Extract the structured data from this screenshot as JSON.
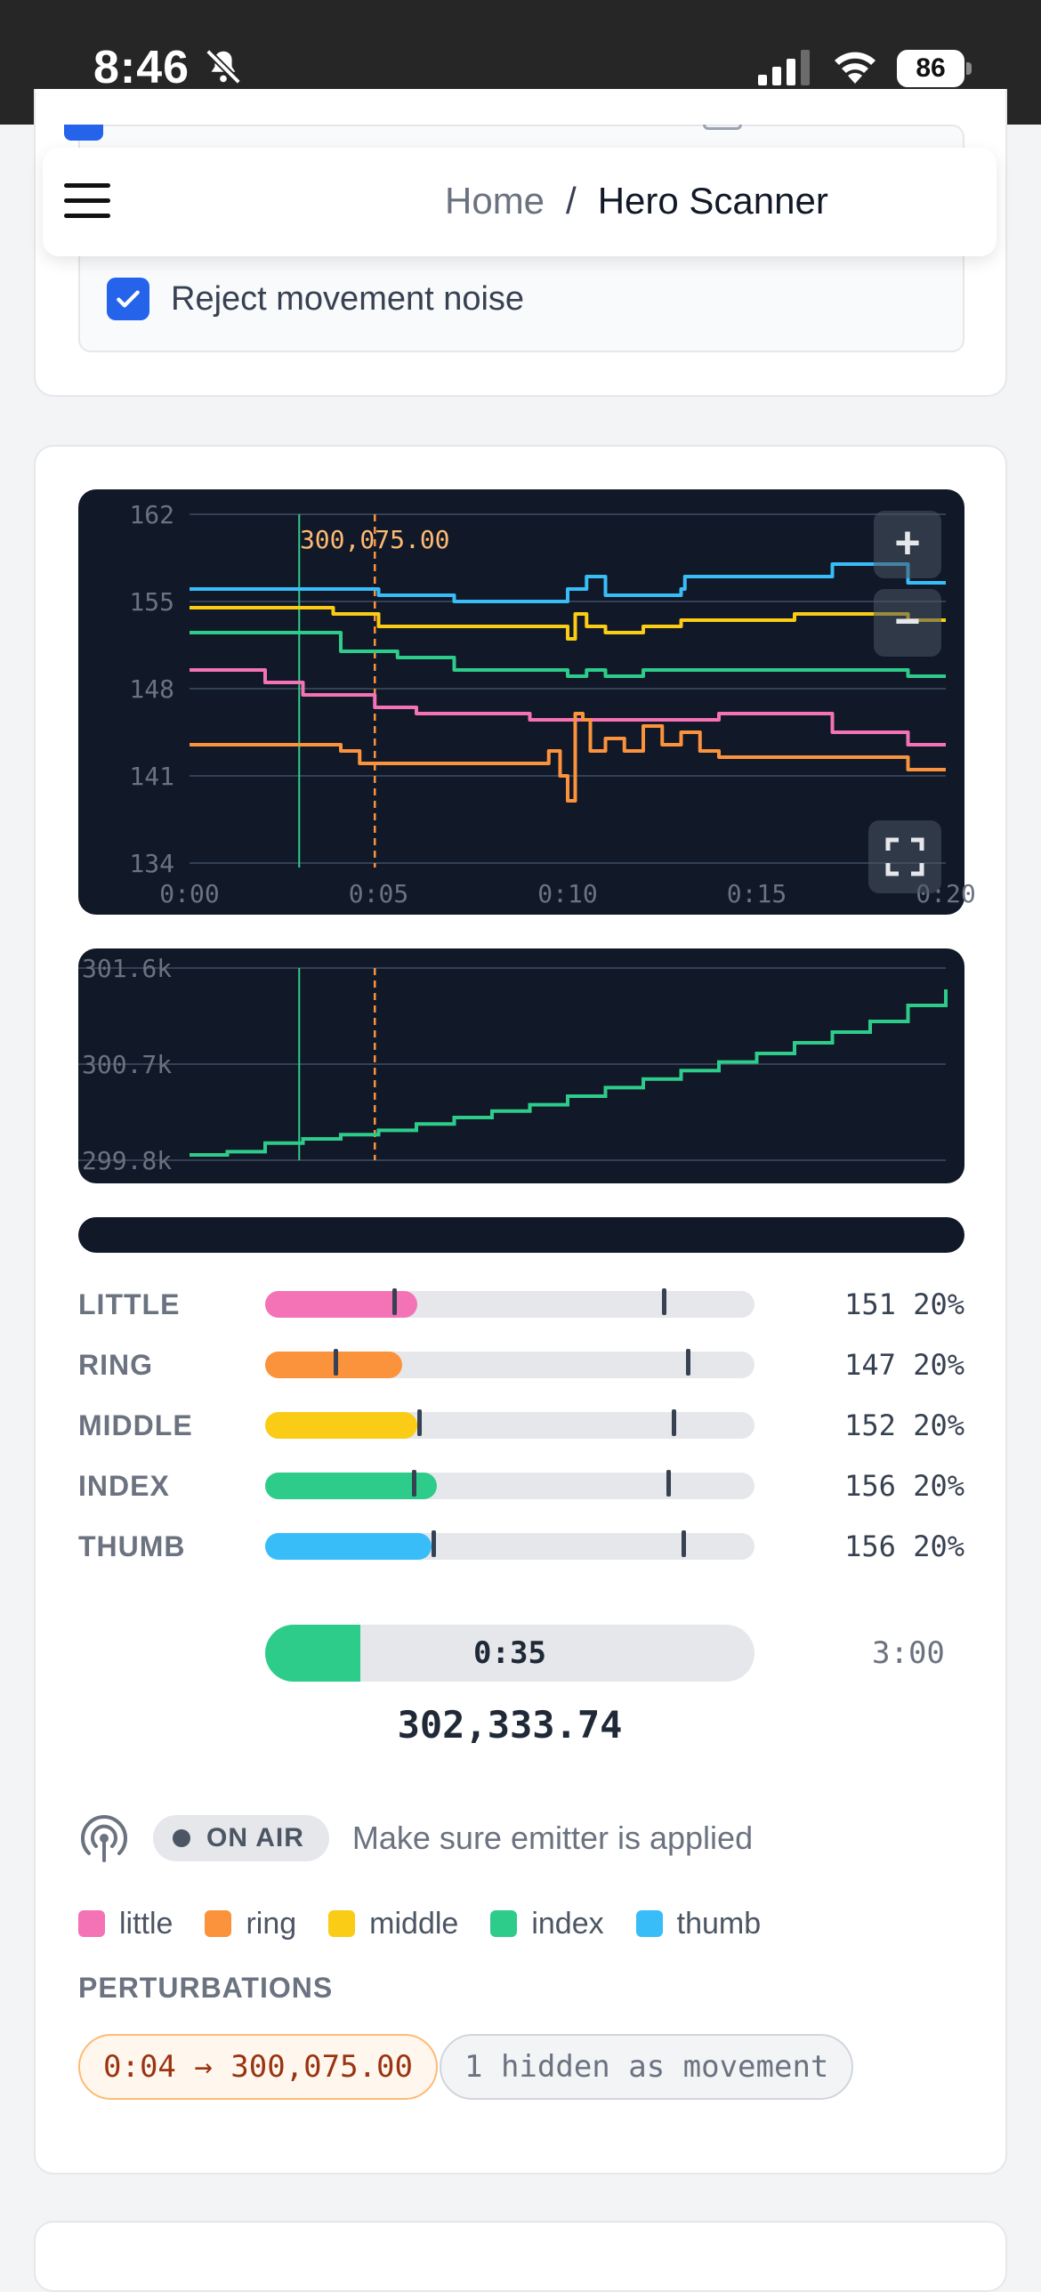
{
  "status_bar": {
    "time": "8:46",
    "battery": "86"
  },
  "header": {
    "breadcrumb_home": "Home",
    "breadcrumb_sep": "/",
    "breadcrumb_current": "Hero Scanner"
  },
  "settings": {
    "reject_noise_label": "Reject movement noise",
    "reject_noise_checked": true
  },
  "chart_data": [
    {
      "type": "line",
      "xlabel": "",
      "ylabel": "",
      "x_ticks": [
        "0:00",
        "0:05",
        "0:10",
        "0:15",
        "0:20"
      ],
      "y_ticks": [
        162,
        155,
        148,
        141,
        134
      ],
      "ylim": [
        134,
        162
      ],
      "xlim_seconds": [
        0,
        20
      ],
      "annotation": {
        "label": "300,075.00",
        "x_seconds": 4.9
      },
      "cursor_x_seconds": 2.9,
      "series": [
        {
          "name": "thumb",
          "color": "#38bdf8",
          "x": [
            0,
            3,
            5,
            7,
            9,
            10,
            10.5,
            11,
            12,
            13,
            13.1,
            15,
            16,
            17,
            18,
            19,
            20
          ],
          "y": [
            156,
            156,
            155.5,
            155,
            155,
            156,
            157,
            155.5,
            155.5,
            156,
            157,
            157,
            157,
            158,
            158,
            156.5,
            156.5
          ]
        },
        {
          "name": "middle",
          "color": "#facc15",
          "x": [
            0,
            3,
            3.8,
            5,
            7,
            9,
            10,
            10.2,
            10.5,
            11,
            12,
            13,
            15,
            16,
            17,
            18,
            19,
            20
          ],
          "y": [
            154.5,
            154.5,
            154,
            153,
            153,
            153,
            152,
            154,
            153,
            152.5,
            153,
            153.5,
            153.5,
            154,
            154,
            154,
            153.5,
            153.5
          ]
        },
        {
          "name": "index",
          "color": "#2ecc8a",
          "x": [
            0,
            2,
            4,
            5.5,
            7,
            9,
            10,
            10.5,
            11,
            12,
            13,
            15,
            17,
            19,
            20
          ],
          "y": [
            152.5,
            152.5,
            151,
            150.5,
            149.5,
            149.5,
            149,
            149.5,
            149,
            149.5,
            149.5,
            149.5,
            149.5,
            149,
            149
          ]
        },
        {
          "name": "little",
          "color": "#f472b6",
          "x": [
            0,
            1,
            2,
            3,
            4,
            4.9,
            6,
            7,
            8,
            9,
            10,
            11,
            12,
            13,
            14,
            15,
            16,
            17,
            18,
            19,
            20
          ],
          "y": [
            149.5,
            149.5,
            148.5,
            147.5,
            147.5,
            146.5,
            146,
            146,
            146,
            145.5,
            145.5,
            145.5,
            145.5,
            145.5,
            146,
            146,
            146,
            144.5,
            144.5,
            143.5,
            143.5
          ]
        },
        {
          "name": "ring",
          "color": "#fb923c",
          "x": [
            0,
            1,
            2,
            3,
            4,
            4.5,
            5,
            7,
            9,
            9.5,
            9.8,
            10,
            10.2,
            10.4,
            10.6,
            11,
            11.5,
            12,
            12.5,
            13,
            13.5,
            14,
            15,
            16,
            17,
            18,
            19,
            20
          ],
          "y": [
            143.5,
            143.5,
            143.5,
            143.5,
            143,
            142,
            142,
            142,
            142,
            143,
            141,
            139,
            146,
            145.5,
            143,
            144,
            143,
            145,
            143.5,
            144.5,
            143,
            142.5,
            142.5,
            142.5,
            142.5,
            142.5,
            141.5,
            141.5
          ]
        }
      ]
    },
    {
      "type": "line",
      "y_ticks": [
        "301.6k",
        "300.7k",
        "299.8k"
      ],
      "ylim": [
        299800,
        301600
      ],
      "xlim_seconds": [
        0,
        20
      ],
      "series": [
        {
          "name": "",
          "color": "#2ecc8a",
          "x": [
            0,
            1,
            2,
            3,
            4,
            5,
            6,
            7,
            8,
            9,
            10,
            11,
            12,
            13,
            14,
            15,
            16,
            17,
            18,
            19,
            20
          ],
          "y": [
            299850,
            299880,
            299960,
            300000,
            300040,
            300080,
            300140,
            300200,
            300260,
            300320,
            300400,
            300480,
            300560,
            300640,
            300720,
            300800,
            300900,
            301000,
            301100,
            301250,
            301400
          ]
        }
      ]
    }
  ],
  "fingers": [
    {
      "name": "LITTLE",
      "color": "#f472b6",
      "fill_pct": 0.31,
      "tick1": 0.26,
      "tick2": 0.81,
      "value": "151",
      "pct": "20%"
    },
    {
      "name": "RING",
      "color": "#fb923c",
      "fill_pct": 0.28,
      "tick1": 0.14,
      "tick2": 0.86,
      "value": "147",
      "pct": "20%"
    },
    {
      "name": "MIDDLE",
      "color": "#facc15",
      "fill_pct": 0.31,
      "tick1": 0.31,
      "tick2": 0.83,
      "value": "152",
      "pct": "20%"
    },
    {
      "name": "INDEX",
      "color": "#2ecc8a",
      "fill_pct": 0.35,
      "tick1": 0.3,
      "tick2": 0.82,
      "value": "156",
      "pct": "20%"
    },
    {
      "name": "THUMB",
      "color": "#38bdf8",
      "fill_pct": 0.34,
      "tick1": 0.34,
      "tick2": 0.85,
      "value": "156",
      "pct": "20%"
    }
  ],
  "timer": {
    "current": "0:35",
    "total": "3:00",
    "progress": 0.194
  },
  "big_value": "302,333.74",
  "onair": {
    "badge": "ON AIR",
    "message": "Make sure emitter is applied"
  },
  "legend": [
    {
      "label": "little",
      "color": "#f472b6"
    },
    {
      "label": "ring",
      "color": "#fb923c"
    },
    {
      "label": "middle",
      "color": "#facc15"
    },
    {
      "label": "index",
      "color": "#2ecc8a"
    },
    {
      "label": "thumb",
      "color": "#38bdf8"
    }
  ],
  "perturbations": {
    "title": "PERTURBATIONS",
    "chip1": "0:04 → 300,075.00",
    "chip2": "1 hidden as movement"
  }
}
